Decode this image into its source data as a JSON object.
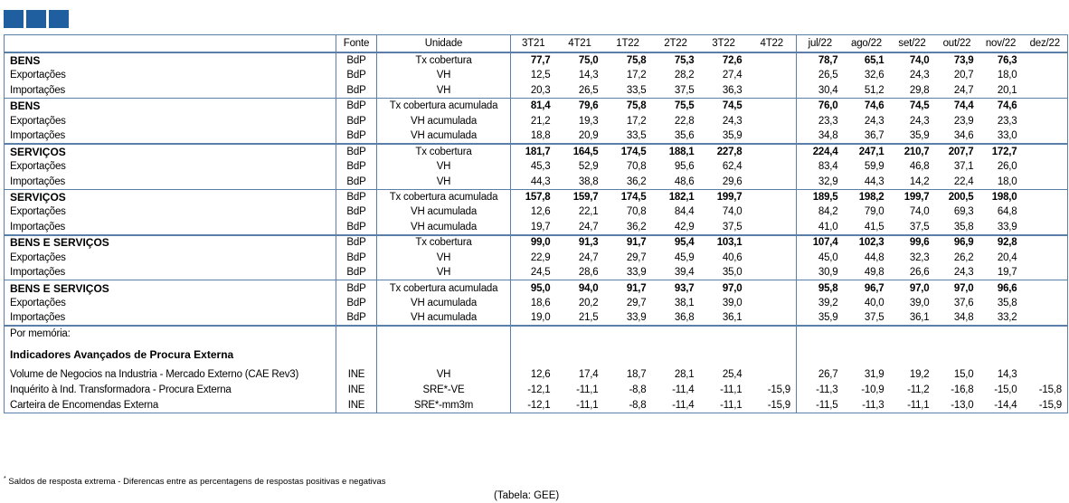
{
  "logo_colors": [
    "#1f5fa0",
    "#1f5fa0",
    "#1f5fa0"
  ],
  "header": {
    "fonte": "Fonte",
    "unidade": "Unidade",
    "periods": [
      "3T21",
      "4T21",
      "1T22",
      "2T22",
      "3T22",
      "4T22",
      "jul/22",
      "ago/22",
      "set/22",
      "out/22",
      "nov/22",
      "dez/22"
    ]
  },
  "rows": [
    {
      "label": "BENS",
      "fonte": "BdP",
      "unidade": "Tx cobertura",
      "bold": true,
      "sep": "thick",
      "values": [
        "77,7",
        "75,0",
        "75,8",
        "75,3",
        "72,6",
        "",
        "78,7",
        "65,1",
        "74,0",
        "73,9",
        "76,3",
        ""
      ]
    },
    {
      "label": "Exportações",
      "fonte": "BdP",
      "unidade": "VH",
      "bold": false,
      "values": [
        "12,5",
        "14,3",
        "17,2",
        "28,2",
        "27,4",
        "",
        "26,5",
        "32,6",
        "24,3",
        "20,7",
        "18,0",
        ""
      ]
    },
    {
      "label": "Importações",
      "fonte": "BdP",
      "unidade": "VH",
      "bold": false,
      "values": [
        "20,3",
        "26,5",
        "33,5",
        "37,5",
        "36,3",
        "",
        "30,4",
        "51,2",
        "29,8",
        "24,7",
        "20,1",
        ""
      ]
    },
    {
      "label": "BENS",
      "fonte": "BdP",
      "unidade": "Tx cobertura acumulada",
      "bold": true,
      "sep": "thin",
      "values": [
        "81,4",
        "79,6",
        "75,8",
        "75,5",
        "74,5",
        "",
        "76,0",
        "74,6",
        "74,5",
        "74,4",
        "74,6",
        ""
      ]
    },
    {
      "label": "Exportações",
      "fonte": "BdP",
      "unidade": "VH acumulada",
      "bold": false,
      "values": [
        "21,2",
        "19,3",
        "17,2",
        "22,8",
        "24,3",
        "",
        "23,3",
        "24,3",
        "24,3",
        "23,9",
        "23,3",
        ""
      ]
    },
    {
      "label": "Importações",
      "fonte": "BdP",
      "unidade": "VH acumulada",
      "bold": false,
      "values": [
        "18,8",
        "20,9",
        "33,5",
        "35,6",
        "35,9",
        "",
        "34,8",
        "36,7",
        "35,9",
        "34,6",
        "33,0",
        ""
      ]
    },
    {
      "label": "SERVIÇOS",
      "fonte": "BdP",
      "unidade": "Tx cobertura",
      "bold": true,
      "sep": "thick",
      "values": [
        "181,7",
        "164,5",
        "174,5",
        "188,1",
        "227,8",
        "",
        "224,4",
        "247,1",
        "210,7",
        "207,7",
        "172,7",
        ""
      ]
    },
    {
      "label": "Exportações",
      "fonte": "BdP",
      "unidade": "VH",
      "bold": false,
      "values": [
        "45,3",
        "52,9",
        "70,8",
        "95,6",
        "62,4",
        "",
        "83,4",
        "59,9",
        "46,8",
        "37,1",
        "26,0",
        ""
      ]
    },
    {
      "label": "Importações",
      "fonte": "BdP",
      "unidade": "VH",
      "bold": false,
      "values": [
        "44,3",
        "38,8",
        "36,2",
        "48,6",
        "29,6",
        "",
        "32,9",
        "44,3",
        "14,2",
        "22,4",
        "18,0",
        ""
      ]
    },
    {
      "label": "SERVIÇOS",
      "fonte": "BdP",
      "unidade": "Tx cobertura acumulada",
      "bold": true,
      "sep": "thin",
      "values": [
        "157,8",
        "159,7",
        "174,5",
        "182,1",
        "199,7",
        "",
        "189,5",
        "198,2",
        "199,7",
        "200,5",
        "198,0",
        ""
      ]
    },
    {
      "label": "Exportações",
      "fonte": "BdP",
      "unidade": "VH acumulada",
      "bold": false,
      "values": [
        "12,6",
        "22,1",
        "70,8",
        "84,4",
        "74,0",
        "",
        "84,2",
        "79,0",
        "74,0",
        "69,3",
        "64,8",
        ""
      ]
    },
    {
      "label": "Importações",
      "fonte": "BdP",
      "unidade": "VH acumulada",
      "bold": false,
      "values": [
        "19,7",
        "24,7",
        "36,2",
        "42,9",
        "37,5",
        "",
        "41,0",
        "41,5",
        "37,5",
        "35,8",
        "33,9",
        ""
      ]
    },
    {
      "label": "BENS E SERVIÇOS",
      "fonte": "BdP",
      "unidade": "Tx cobertura",
      "bold": true,
      "sep": "thick",
      "values": [
        "99,0",
        "91,3",
        "91,7",
        "95,4",
        "103,1",
        "",
        "107,4",
        "102,3",
        "99,6",
        "96,9",
        "92,8",
        ""
      ]
    },
    {
      "label": "Exportações",
      "fonte": "BdP",
      "unidade": "VH",
      "bold": false,
      "values": [
        "22,9",
        "24,7",
        "29,7",
        "45,9",
        "40,6",
        "",
        "45,0",
        "44,8",
        "32,3",
        "26,2",
        "20,4",
        ""
      ]
    },
    {
      "label": "Importações",
      "fonte": "BdP",
      "unidade": "VH",
      "bold": false,
      "values": [
        "24,5",
        "28,6",
        "33,9",
        "39,4",
        "35,0",
        "",
        "30,9",
        "49,8",
        "26,6",
        "24,3",
        "19,7",
        ""
      ]
    },
    {
      "label": "BENS E SERVIÇOS",
      "fonte": "BdP",
      "unidade": "Tx cobertura acumulada",
      "bold": true,
      "sep": "thin",
      "values": [
        "95,0",
        "94,0",
        "91,7",
        "93,7",
        "97,0",
        "",
        "95,8",
        "96,7",
        "97,0",
        "97,0",
        "96,6",
        ""
      ]
    },
    {
      "label": "Exportações",
      "fonte": "BdP",
      "unidade": "VH acumulada",
      "bold": false,
      "values": [
        "18,6",
        "20,2",
        "29,7",
        "38,1",
        "39,0",
        "",
        "39,2",
        "40,0",
        "39,0",
        "37,6",
        "35,8",
        ""
      ]
    },
    {
      "label": "Importações",
      "fonte": "BdP",
      "unidade": "VH acumulada",
      "bold": false,
      "values": [
        "19,0",
        "21,5",
        "33,9",
        "36,8",
        "36,1",
        "",
        "35,9",
        "37,5",
        "36,1",
        "34,8",
        "33,2",
        ""
      ]
    }
  ],
  "memoria": {
    "label": "Por memória:",
    "section_title": "Indicadores Avançados de Procura Externa",
    "rows": [
      {
        "label": "Volume de Negocios na Industria - Mercado Externo (CAE Rev3)",
        "fonte": "INE",
        "unidade": "VH",
        "values": [
          "12,6",
          "17,4",
          "18,7",
          "28,1",
          "25,4",
          "",
          "26,7",
          "31,9",
          "19,2",
          "15,0",
          "14,3",
          ""
        ]
      },
      {
        "label": "Inquérito à Ind. Transformadora - Procura Externa",
        "fonte": "INE",
        "unidade": "SRE*-VE",
        "values": [
          "-12,1",
          "-11,1",
          "-8,8",
          "-11,4",
          "-11,1",
          "-15,9",
          "-11,3",
          "-10,9",
          "-11,2",
          "-16,8",
          "-15,0",
          "-15,8"
        ]
      },
      {
        "label": "Carteira de Encomendas Externa",
        "fonte": "INE",
        "unidade": "SRE*-mm3m",
        "values": [
          "-12,1",
          "-11,1",
          "-8,8",
          "-11,4",
          "-11,1",
          "-15,9",
          "-11,5",
          "-11,3",
          "-11,1",
          "-13,0",
          "-14,4",
          "-15,9"
        ]
      }
    ]
  },
  "footnote": {
    "mark": "*",
    "text": " Saldos de resposta extrema - Diferencas entre as percentagens de respostas positivas e negativas"
  },
  "credit": "(Tabela: GEE)"
}
